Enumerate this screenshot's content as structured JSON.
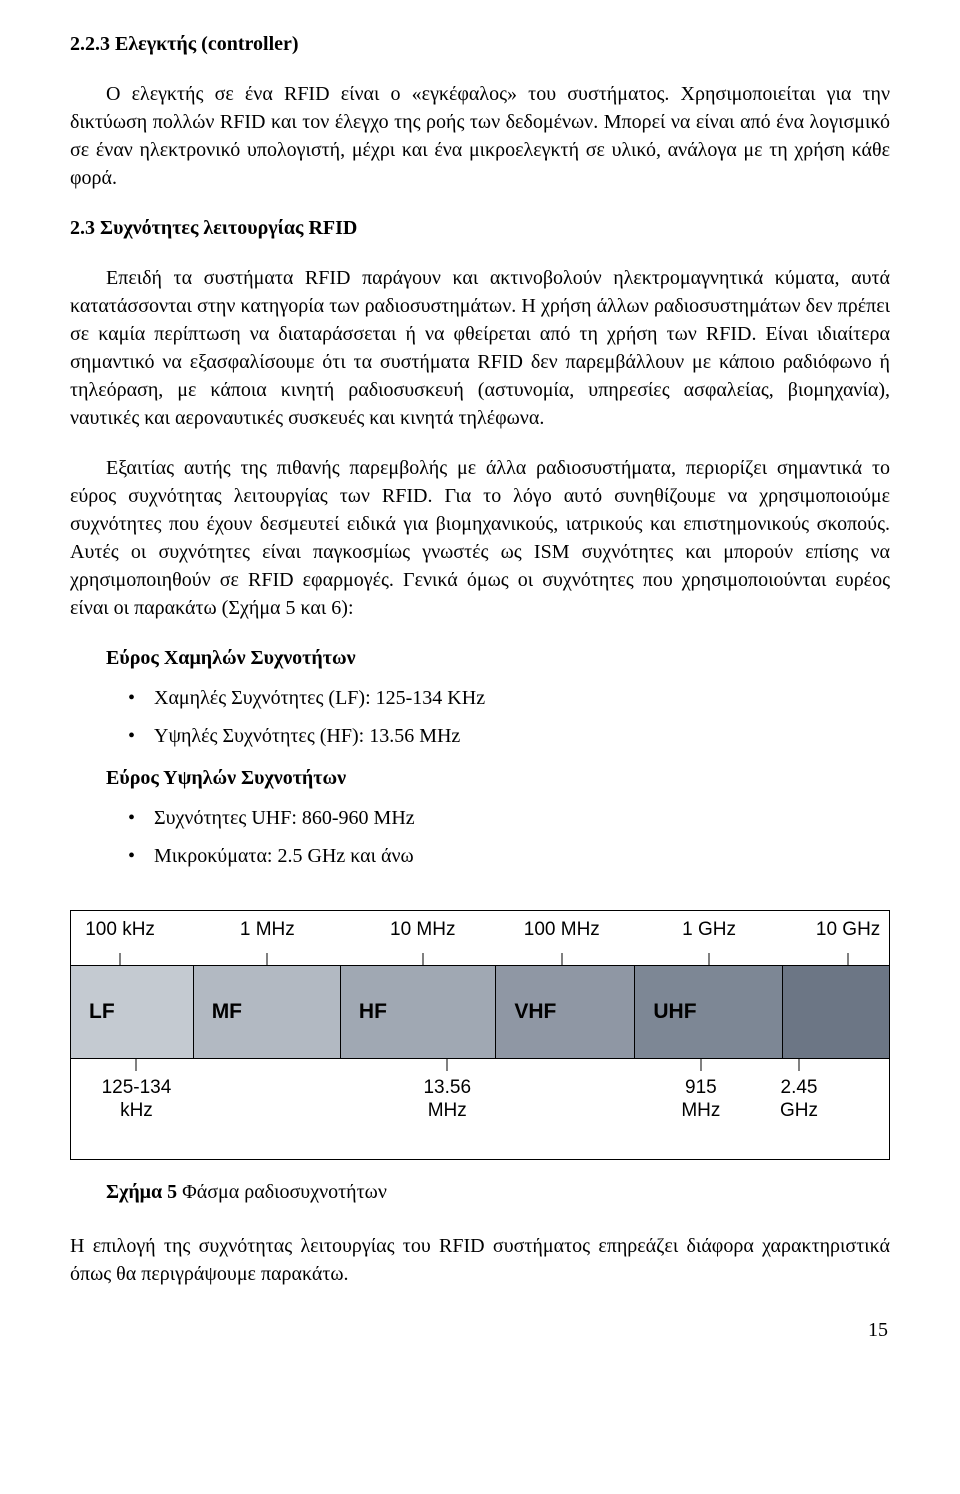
{
  "section1": {
    "heading": "2.2.3 Ελεγκτής (controller)",
    "para1": "Ο ελεγκτής σε ένα RFID είναι ο «εγκέφαλος» του συστήματος. Χρησιμοποιείται για την δικτύωση πολλών RFID και τον έλεγχο της ροής των δεδομένων. Μπορεί να είναι από ένα λογισμικό σε έναν ηλεκτρονικό υπολογιστή, μέχρι και ένα μικροελεγκτή σε υλικό, ανάλογα με τη χρήση κάθε φορά."
  },
  "section2": {
    "heading": "2.3 Συχνότητες λειτουργίας RFID",
    "para1": "Επειδή τα συστήματα RFID παράγουν και ακτινοβολούν ηλεκτρομαγνητικά κύματα, αυτά κατατάσσονται στην κατηγορία των ραδιοσυστημάτων. Η χρήση άλλων ραδιοσυστημάτων δεν πρέπει σε καμία περίπτωση να διαταράσσεται ή να φθείρεται από τη χρήση των RFID. Είναι ιδιαίτερα σημαντικό να εξασφαλίσουμε ότι τα συστήματα RFID δεν παρεμβάλλουν με κάποιο ραδιόφωνο ή τηλεόραση, με κάποια κινητή ραδιοσυσκευή (αστυνομία, υπηρεσίες ασφαλείας, βιομηχανία), ναυτικές και αεροναυτικές συσκευές και κινητά τηλέφωνα.",
    "para2": "Εξαιτίας αυτής της πιθανής παρεμβολής με άλλα ραδιοσυστήματα, περιορίζει σημαντικά το εύρος συχνότητας λειτουργίας των RFID. Για το λόγο αυτό συνηθίζουμε να χρησιμοποιούμε συχνότητες που έχουν δεσμευτεί ειδικά για βιομηχανικούς, ιατρικούς και επιστημονικούς σκοπούς. Αυτές οι συχνότητες είναι παγκοσμίως γνωστές ως ISM συχνότητες και μπορούν επίσης να χρησιμοποιηθούν σε RFID εφαρμογές. Γενικά όμως οι συχνότητες που χρησιμοποιούνται ευρέος είναι οι παρακάτω (Σχήμα 5 και 6):"
  },
  "lists": {
    "lowHeading": "Εύρος Χαμηλών Συχνοτήτων",
    "lowItems": [
      "Χαμηλές Συχνότητες (LF): 125-134 KHz",
      "Υψηλές Συχνότητες (HF): 13.56 MHz"
    ],
    "highHeading": "Εύρος Υψηλών Συχνοτήτων",
    "highItems": [
      "Συχνότητες UHF: 860-960 MHz",
      "Μικροκύματα: 2.5 GHz και άνω"
    ]
  },
  "spectrum": {
    "topTicks": [
      {
        "label": "100 kHz",
        "posPct": 6
      },
      {
        "label": "1 MHz",
        "posPct": 24
      },
      {
        "label": "10 MHz",
        "posPct": 43
      },
      {
        "label": "100 MHz",
        "posPct": 60
      },
      {
        "label": "1 GHz",
        "posPct": 78
      },
      {
        "label": "10 GHz",
        "posPct": 95
      }
    ],
    "bands": [
      {
        "label": "LF",
        "widthPct": 15,
        "bg": "#c4cad1"
      },
      {
        "label": "MF",
        "widthPct": 18,
        "bg": "#b2b9c2"
      },
      {
        "label": "HF",
        "widthPct": 19,
        "bg": "#a0a8b3"
      },
      {
        "label": "VHF",
        "widthPct": 17,
        "bg": "#8f97a4"
      },
      {
        "label": "UHF",
        "widthPct": 18,
        "bg": "#7d8795"
      },
      {
        "label": "",
        "widthPct": 13,
        "bg": "#6c7685"
      }
    ],
    "bottomTicks": [
      {
        "label1": "125-134",
        "label2": "kHz",
        "posPct": 8
      },
      {
        "label1": "13.56",
        "label2": "MHz",
        "posPct": 46
      },
      {
        "label1": "915",
        "label2": "MHz",
        "posPct": 77
      },
      {
        "label1": "2.45",
        "label2": "GHz",
        "posPct": 89
      }
    ],
    "caption_bold": "Σχήμα 5",
    "caption_rest": " Φάσμα ραδιοσυχνοτήτων"
  },
  "closing": {
    "para": "Η επιλογή της συχνότητας λειτουργίας του RFID συστήματος επηρεάζει διάφορα χαρακτηριστικά όπως θα περιγράψουμε παρακάτω."
  },
  "pageNumber": "15"
}
